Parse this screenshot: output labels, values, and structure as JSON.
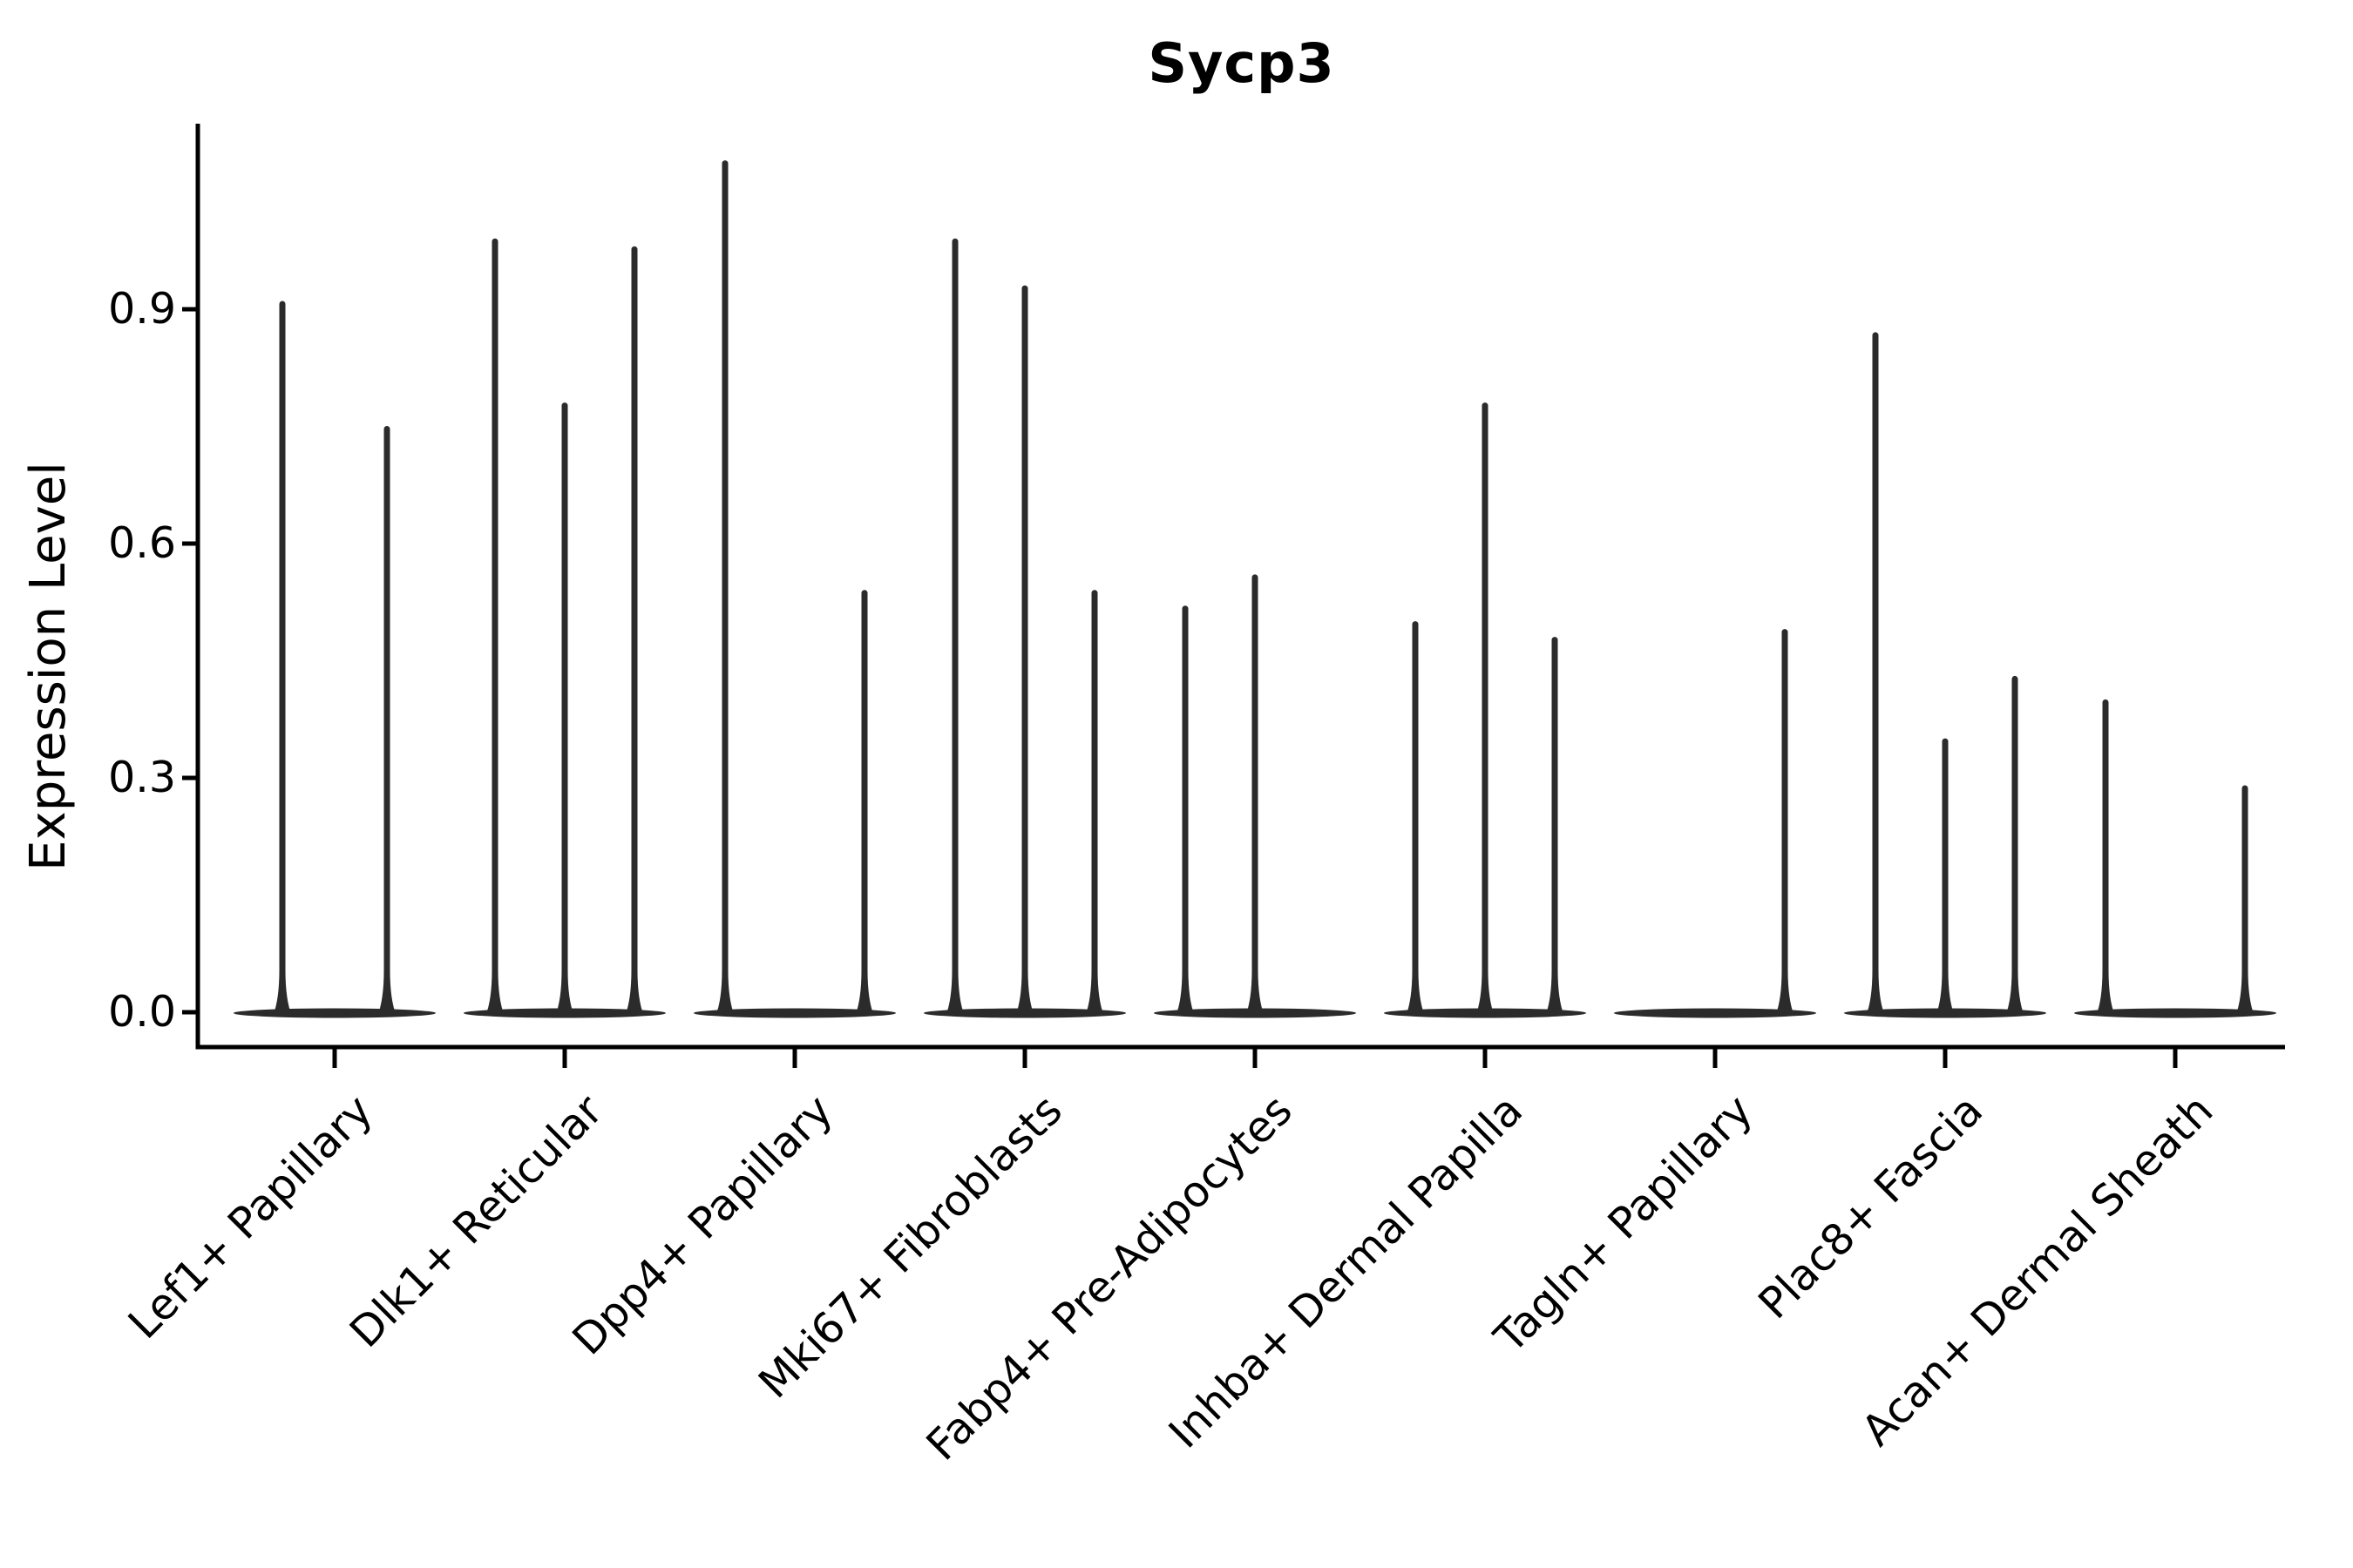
{
  "figure": {
    "background": "#ffffff",
    "ink_color": "#2b2b2b",
    "axis_color": "#000000",
    "text_color": "#000000"
  },
  "chart_data": {
    "type": "violin",
    "title": "Sycp3",
    "xlabel": "",
    "ylabel": "Expression Level",
    "grid": false,
    "legend_position": "none",
    "ylim": [
      -0.045,
      1.14
    ],
    "yticks": [
      0.0,
      0.3,
      0.6,
      0.9
    ],
    "ytick_labels": [
      "0.0",
      "0.3",
      "0.6",
      "0.9"
    ],
    "categories": [
      "Lef1+ Papillary",
      "Dlk1+ Reticular",
      "Dpp4+ Papillary",
      "Mki67+ Fibroblasts",
      "Fabp4+ Pre-Adipocytes",
      "Inhba+ Dermal Papilla",
      "Tagln+ Papillary",
      "Plac8+ Fascia",
      "Acan+ Dermal Sheath"
    ],
    "series_note": "Each category holds narrow sub-violins; values are the max Expression Level reached by each sub-violin spike (0 = flat violin collapsed at baseline).",
    "violin_maxima": [
      [
        0.91,
        0.75
      ],
      [
        0.99,
        0.78,
        0.98
      ],
      [
        1.09,
        0,
        0.54
      ],
      [
        0.99,
        0.93,
        0.54
      ],
      [
        0.52,
        0.56,
        0
      ],
      [
        0.5,
        0.78,
        0.48
      ],
      [
        0,
        0,
        0.49
      ],
      [
        0.87,
        0.35,
        0.43
      ],
      [
        0.4,
        0,
        0.29
      ]
    ]
  }
}
